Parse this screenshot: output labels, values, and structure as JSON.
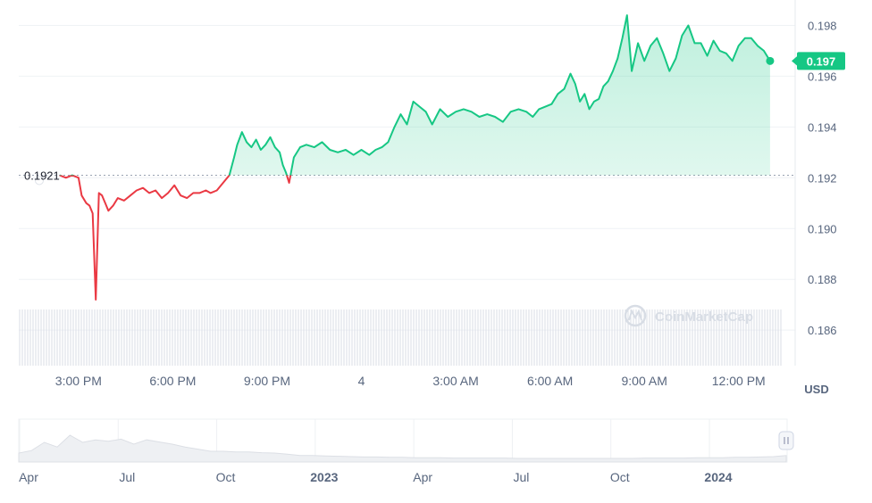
{
  "chart_data": {
    "type": "line",
    "title": "",
    "unit": "USD",
    "reference_price": "0.1921",
    "reference_value": 0.1921,
    "current_price_label": "0.197",
    "current_value": 0.1966,
    "ylim": [
      0.1846,
      0.199
    ],
    "y_ticks": [
      0.198,
      0.196,
      0.194,
      0.192,
      0.19,
      0.188,
      0.186
    ],
    "y_tick_labels": [
      "0.198",
      "0.196",
      "0.194",
      "0.192",
      "0.190",
      "0.188",
      "0.186"
    ],
    "x_tick_labels": [
      "3:00 PM",
      "6:00 PM",
      "9:00 PM",
      "4",
      "3:00 AM",
      "6:00 AM",
      "9:00 AM",
      "12:00 PM"
    ],
    "x_tick_hours": [
      3,
      6,
      9,
      12,
      15,
      18,
      21,
      24
    ],
    "x_range_hours": [
      1.1,
      25.4
    ],
    "watermark": "CoinMarketCap",
    "colors": {
      "up": "#16c784",
      "down": "#ea3943",
      "grid": "#eff2f5",
      "text": "#58667e"
    },
    "series": [
      {
        "x": [
          2.4,
          2.6,
          2.8,
          3.0,
          3.1,
          3.25,
          3.35,
          3.45,
          3.55,
          3.65,
          3.75,
          3.85,
          3.95,
          4.1,
          4.25,
          4.45,
          4.65,
          4.85,
          5.05,
          5.25,
          5.45,
          5.65,
          5.85,
          6.05,
          6.25,
          6.45,
          6.65,
          6.85,
          7.05,
          7.2,
          7.4,
          7.6,
          7.8,
          7.95,
          8.05,
          8.2,
          8.35,
          8.5,
          8.65,
          8.8,
          8.95,
          9.1,
          9.25,
          9.4,
          9.5,
          9.6,
          9.7,
          9.85,
          10.05,
          10.25,
          10.5,
          10.75,
          11.0,
          11.25,
          11.5,
          11.75,
          12.0,
          12.25,
          12.45,
          12.65,
          12.85,
          13.05,
          13.25,
          13.45,
          13.65,
          13.85,
          14.05,
          14.25,
          14.5,
          14.75,
          15.0,
          15.25,
          15.5,
          15.75,
          16.0,
          16.25,
          16.5,
          16.75,
          17.0,
          17.25,
          17.45,
          17.65,
          17.85,
          18.05,
          18.25,
          18.45,
          18.65,
          18.8,
          18.95,
          19.1,
          19.25,
          19.4,
          19.55,
          19.7,
          19.85,
          20.0,
          20.15,
          20.3,
          20.45,
          20.6,
          20.8,
          21.0,
          21.2,
          21.4,
          21.6,
          21.8,
          22.0,
          22.2,
          22.4,
          22.6,
          22.8,
          23.0,
          23.2,
          23.4,
          23.6,
          23.8,
          24.0,
          24.2,
          24.4,
          24.6,
          24.8,
          25.0
        ],
        "y": [
          0.1921,
          0.192,
          0.1921,
          0.192,
          0.1913,
          0.191,
          0.1909,
          0.1906,
          0.1872,
          0.1914,
          0.1913,
          0.191,
          0.1907,
          0.1909,
          0.1912,
          0.1911,
          0.1913,
          0.1915,
          0.1916,
          0.1914,
          0.1915,
          0.1912,
          0.1914,
          0.1917,
          0.1913,
          0.1912,
          0.1914,
          0.1914,
          0.1915,
          0.1914,
          0.1915,
          0.1918,
          0.1921,
          0.1928,
          0.1933,
          0.1938,
          0.1934,
          0.1932,
          0.1935,
          0.1931,
          0.1933,
          0.1936,
          0.1932,
          0.193,
          0.1925,
          0.1922,
          0.1918,
          0.1928,
          0.1932,
          0.1933,
          0.1932,
          0.1934,
          0.1931,
          0.193,
          0.1931,
          0.1929,
          0.1931,
          0.1929,
          0.1931,
          0.1932,
          0.1934,
          0.194,
          0.1945,
          0.1941,
          0.195,
          0.1948,
          0.1946,
          0.1941,
          0.1947,
          0.1944,
          0.1946,
          0.1947,
          0.1946,
          0.1944,
          0.1945,
          0.1944,
          0.1942,
          0.1946,
          0.1947,
          0.1946,
          0.1944,
          0.1947,
          0.1948,
          0.1949,
          0.1953,
          0.1955,
          0.1961,
          0.1957,
          0.195,
          0.1953,
          0.1947,
          0.195,
          0.1951,
          0.1956,
          0.1958,
          0.1962,
          0.1967,
          0.1975,
          0.1984,
          0.1962,
          0.1973,
          0.1966,
          0.1972,
          0.1975,
          0.1969,
          0.1962,
          0.1967,
          0.1976,
          0.198,
          0.1973,
          0.1973,
          0.1968,
          0.1974,
          0.197,
          0.1969,
          0.1966,
          0.1972,
          0.1975,
          0.1975,
          0.1972,
          0.197,
          0.1966
        ]
      }
    ]
  },
  "navigator": {
    "x_tick_labels": [
      "Apr",
      "Jul",
      "Oct",
      "2023",
      "Apr",
      "Jul",
      "Oct",
      "2024"
    ],
    "x_tick_bold": [
      false,
      false,
      false,
      true,
      false,
      false,
      false,
      true
    ],
    "handle_icon": "pause-handle-icon",
    "profile": [
      0.25,
      0.32,
      0.55,
      0.42,
      0.75,
      0.55,
      0.62,
      0.58,
      0.64,
      0.5,
      0.62,
      0.56,
      0.5,
      0.42,
      0.36,
      0.3,
      0.3,
      0.28,
      0.28,
      0.26,
      0.25,
      0.22,
      0.18,
      0.18,
      0.17,
      0.16,
      0.15,
      0.14,
      0.14,
      0.13,
      0.13,
      0.12,
      0.12,
      0.12,
      0.11,
      0.11,
      0.11,
      0.11,
      0.11,
      0.1,
      0.1,
      0.1,
      0.1,
      0.1,
      0.1,
      0.1,
      0.1,
      0.1,
      0.1,
      0.11,
      0.11,
      0.11,
      0.11,
      0.12,
      0.12,
      0.12,
      0.13,
      0.13,
      0.14,
      0.15,
      0.18
    ]
  }
}
